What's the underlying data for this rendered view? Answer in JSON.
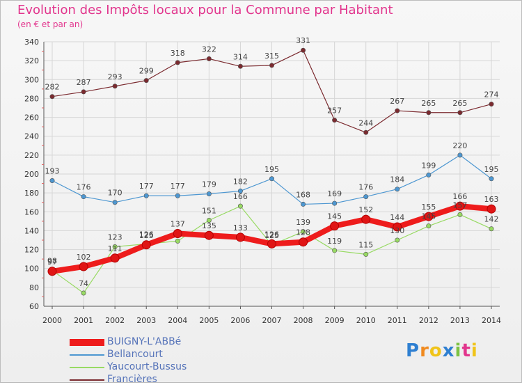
{
  "title": "Evolution des Impôts locaux pour la Commune par Habitant",
  "subtitle": "(en € et par an)",
  "logo": "Proxiti",
  "chart_data": {
    "type": "line",
    "title": "Evolution des Impôts locaux pour la Commune par Habitant",
    "subtitle": "(en € et par an)",
    "xlabel": "",
    "ylabel": "",
    "ylim": [
      60,
      340
    ],
    "yticks": [
      60,
      80,
      100,
      120,
      140,
      160,
      180,
      200,
      220,
      240,
      260,
      280,
      300,
      320,
      340
    ],
    "grid": true,
    "x": [
      "2000",
      "2001",
      "2002",
      "2003",
      "2004",
      "2005",
      "2006",
      "2007",
      "2008",
      "2009",
      "2010",
      "2011",
      "2012",
      "2013",
      "2014"
    ],
    "series": [
      {
        "name": "Francières",
        "color": "#7b2a2f",
        "values": [
          282,
          287,
          293,
          299,
          318,
          322,
          314,
          315,
          331,
          257,
          244,
          267,
          265,
          265,
          274
        ],
        "labels": [
          "282",
          "287",
          "293",
          "299",
          "318",
          "322",
          "314",
          "315",
          "331",
          "257",
          "244",
          "267",
          "265",
          "265",
          "274"
        ]
      },
      {
        "name": "Bellancourt",
        "color": "#4d97d1",
        "values": [
          193,
          176,
          170,
          177,
          177,
          179,
          182,
          195,
          168,
          169,
          176,
          184,
          199,
          220,
          195
        ],
        "labels": [
          "193",
          "176",
          "170",
          "177",
          "177",
          "179",
          "182",
          "195",
          "168",
          "169",
          "176",
          "184",
          "199",
          "220",
          "195"
        ]
      },
      {
        "name": "Yaucourt-Bussus",
        "color": "#98da63",
        "values": [
          98,
          74,
          123,
          126,
          129,
          151,
          166,
          125,
          139,
          119,
          115,
          130,
          145,
          157,
          142
        ],
        "labels": [
          "98",
          "74",
          "123",
          "126",
          "",
          "151",
          "166",
          "125",
          "139",
          "119",
          "115",
          "130",
          "145",
          "157",
          "142"
        ]
      },
      {
        "name": "BUIGNY-L'ABBé",
        "color": "#ee1c1c",
        "values": [
          97,
          102,
          111,
          125,
          137,
          135,
          133,
          126,
          128,
          145,
          152,
          144,
          155,
          166,
          163
        ],
        "labels": [
          "97",
          "102",
          "111",
          "125",
          "137",
          "135",
          "133",
          "126",
          "128",
          "145",
          "152",
          "144",
          "155",
          "166",
          "163"
        ]
      }
    ]
  },
  "legend": [
    {
      "name": "BUIGNY-L'ABBé",
      "color": "#ee1c1c"
    },
    {
      "name": "Bellancourt",
      "color": "#4d97d1"
    },
    {
      "name": "Yaucourt-Bussus",
      "color": "#98da63"
    },
    {
      "name": "Francières",
      "color": "#7b2a2f"
    }
  ]
}
